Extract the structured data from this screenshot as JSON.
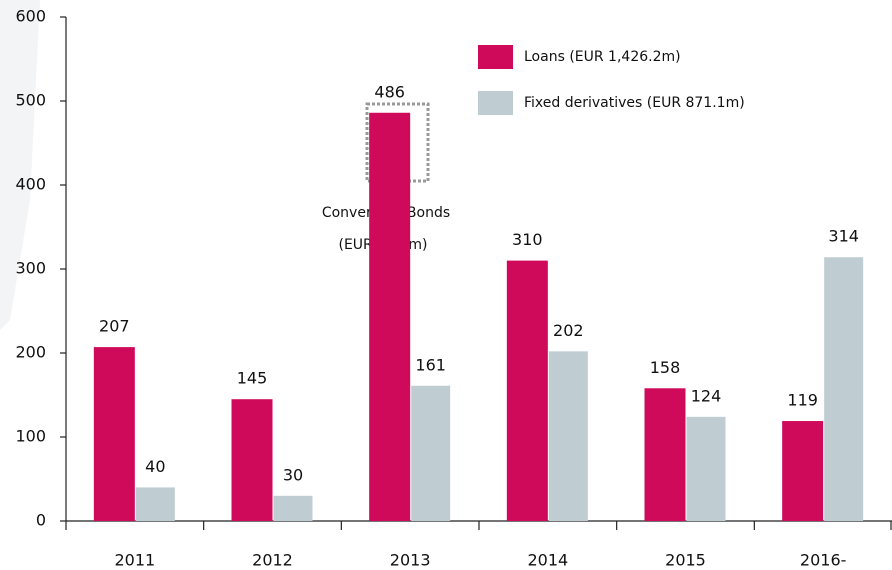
{
  "chart_data": {
    "type": "bar",
    "categories": [
      "2011",
      "2012",
      "2013",
      "2014",
      "2015",
      "2016-"
    ],
    "series": [
      {
        "name": "Loans (EUR 1,426.2m)",
        "color": "#cf0a5a",
        "values": [
          207,
          145,
          486,
          310,
          158,
          119
        ]
      },
      {
        "name": "Fixed derivatives (EUR 871.1m)",
        "color": "#bfcdd3",
        "values": [
          40,
          30,
          161,
          202,
          124,
          314
        ]
      }
    ],
    "annotation": [
      "Convertible Bonds",
      "(EUR 71.3m)"
    ],
    "ylim": [
      0,
      600
    ],
    "yticks": [
      0,
      100,
      200,
      300,
      400,
      500,
      600
    ],
    "grid": false,
    "legend": "top-right"
  }
}
